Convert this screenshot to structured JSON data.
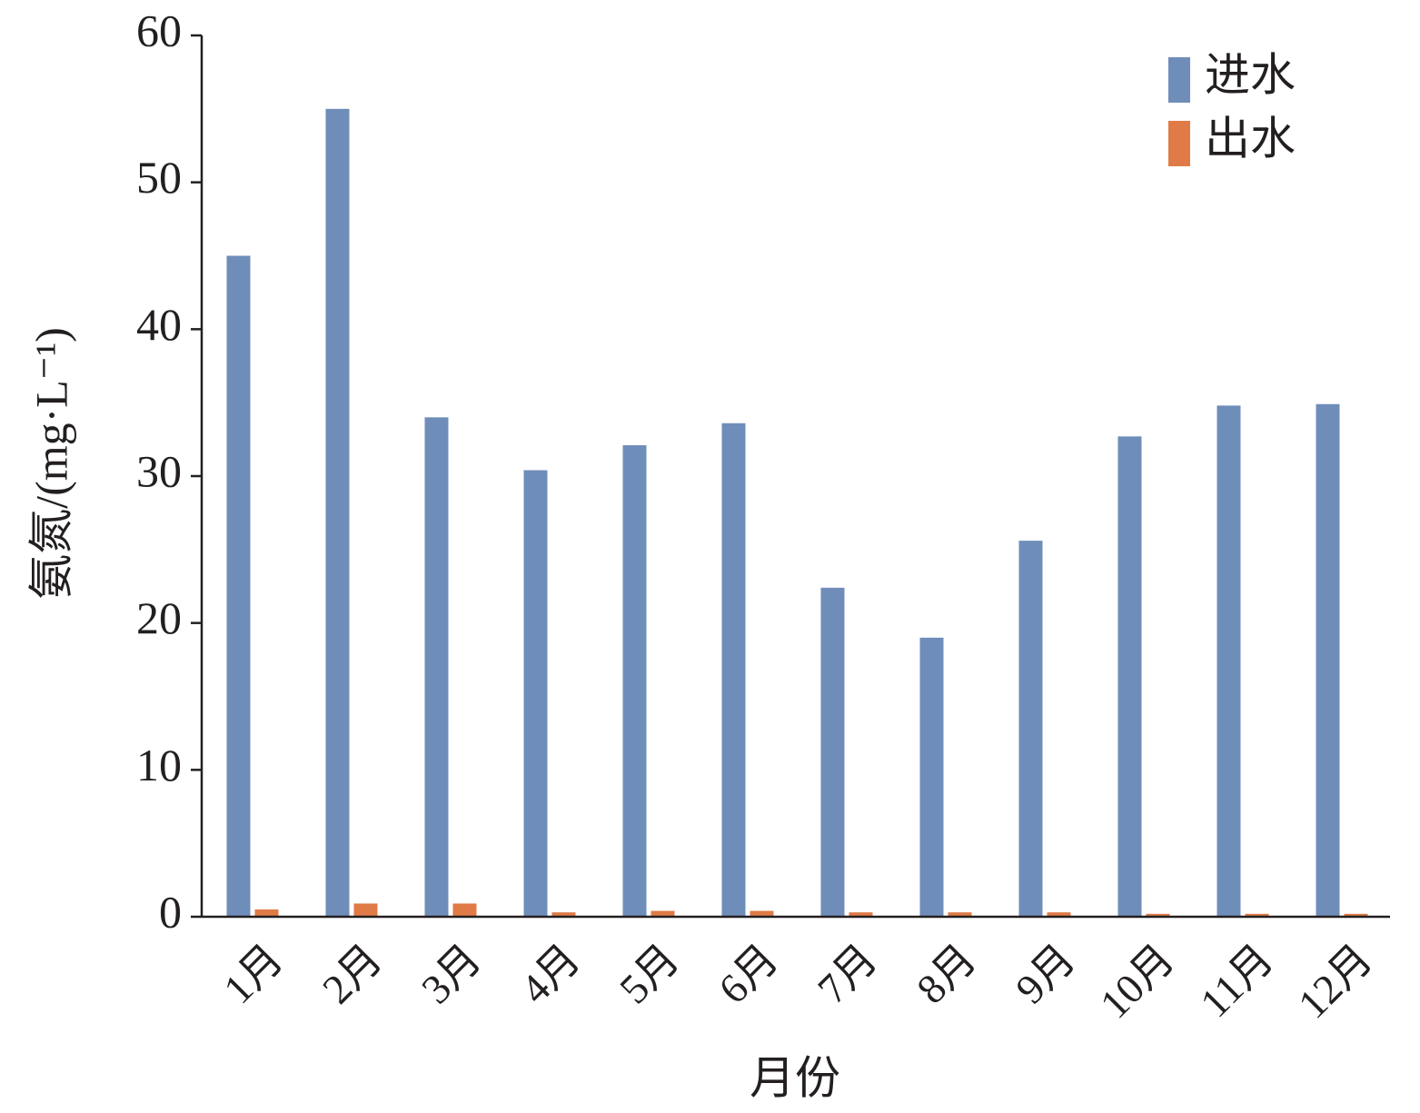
{
  "chart_data": {
    "type": "bar",
    "x_label": "月份",
    "y_label": "氨氮/(mg·L⁻¹)",
    "categories": [
      "1月",
      "2月",
      "3月",
      "4月",
      "5月",
      "6月",
      "7月",
      "8月",
      "9月",
      "10月",
      "11月",
      "12月"
    ],
    "series": [
      {
        "name": "进水",
        "color": "#6f8db9",
        "values": [
          45,
          55,
          34,
          30.4,
          32.1,
          33.6,
          22.4,
          19,
          25.6,
          32.7,
          34.8,
          34.9
        ]
      },
      {
        "name": "出水",
        "color": "#e07b47",
        "values": [
          0.5,
          0.9,
          0.9,
          0.3,
          0.4,
          0.4,
          0.3,
          0.3,
          0.3,
          0.2,
          0.2,
          0.2
        ]
      }
    ],
    "ylim": [
      0,
      60
    ],
    "yticks": [
      0,
      10,
      20,
      30,
      40,
      50,
      60
    ],
    "legend": "upper-right"
  }
}
